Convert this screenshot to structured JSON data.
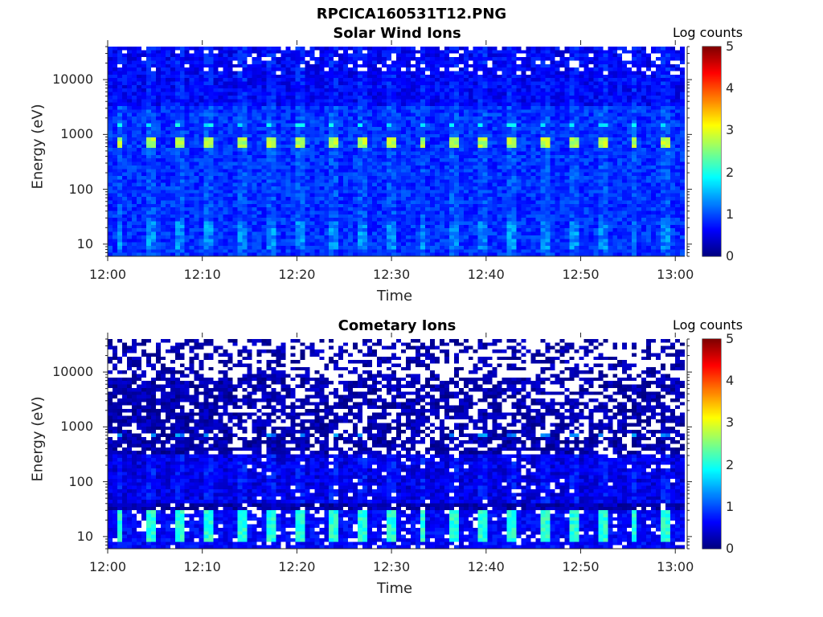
{
  "figure": {
    "title": "RPCICA160531T12.PNG"
  },
  "chart_data": [
    {
      "type": "heatmap",
      "title": "Solar Wind Ions",
      "xlabel": "Time",
      "ylabel": "Energy (eV)",
      "x_ticks": [
        "12:00",
        "12:10",
        "12:20",
        "12:30",
        "12:40",
        "12:50",
        "13:00"
      ],
      "xlim": [
        "12:00",
        "13:01"
      ],
      "y_scale": "log",
      "y_ticks": [
        10,
        100,
        1000,
        10000
      ],
      "y_tick_labels": [
        "10",
        "100",
        "1000",
        "10000"
      ],
      "ylim": [
        6,
        40000
      ],
      "colorbar": {
        "label": "Log counts",
        "ticks": [
          0,
          1,
          2,
          3,
          4,
          5
        ],
        "range": [
          0,
          5
        ],
        "colormap": "jet"
      },
      "features": {
        "peak_energy_eV": 700,
        "peak_log_counts": 3.0,
        "secondary_energy_eV": 1500,
        "secondary_log_counts": 2.0,
        "low_energy_band_eV": [
          8,
          25
        ],
        "low_energy_log_counts": 1.6,
        "background_log_counts": 0.6,
        "sweep_period_min": 3.2
      }
    },
    {
      "type": "heatmap",
      "title": "Cometary Ions",
      "xlabel": "Time",
      "ylabel": "Energy (eV)",
      "x_ticks": [
        "12:00",
        "12:10",
        "12:20",
        "12:30",
        "12:40",
        "12:50",
        "13:00"
      ],
      "xlim": [
        "12:00",
        "13:01"
      ],
      "y_scale": "log",
      "y_ticks": [
        10,
        100,
        1000,
        10000
      ],
      "y_tick_labels": [
        "10",
        "100",
        "1000",
        "10000"
      ],
      "ylim": [
        6,
        40000
      ],
      "colorbar": {
        "label": "Log counts",
        "ticks": [
          0,
          1,
          2,
          3,
          4,
          5
        ],
        "range": [
          0,
          5
        ],
        "colormap": "jet"
      },
      "features": {
        "peak_energy_eV": 700,
        "peak_log_counts": 1.5,
        "low_energy_band_eV": [
          8,
          25
        ],
        "low_energy_log_counts": 2.3,
        "background_log_counts": 0.2,
        "sweep_period_min": 3.2
      }
    }
  ]
}
